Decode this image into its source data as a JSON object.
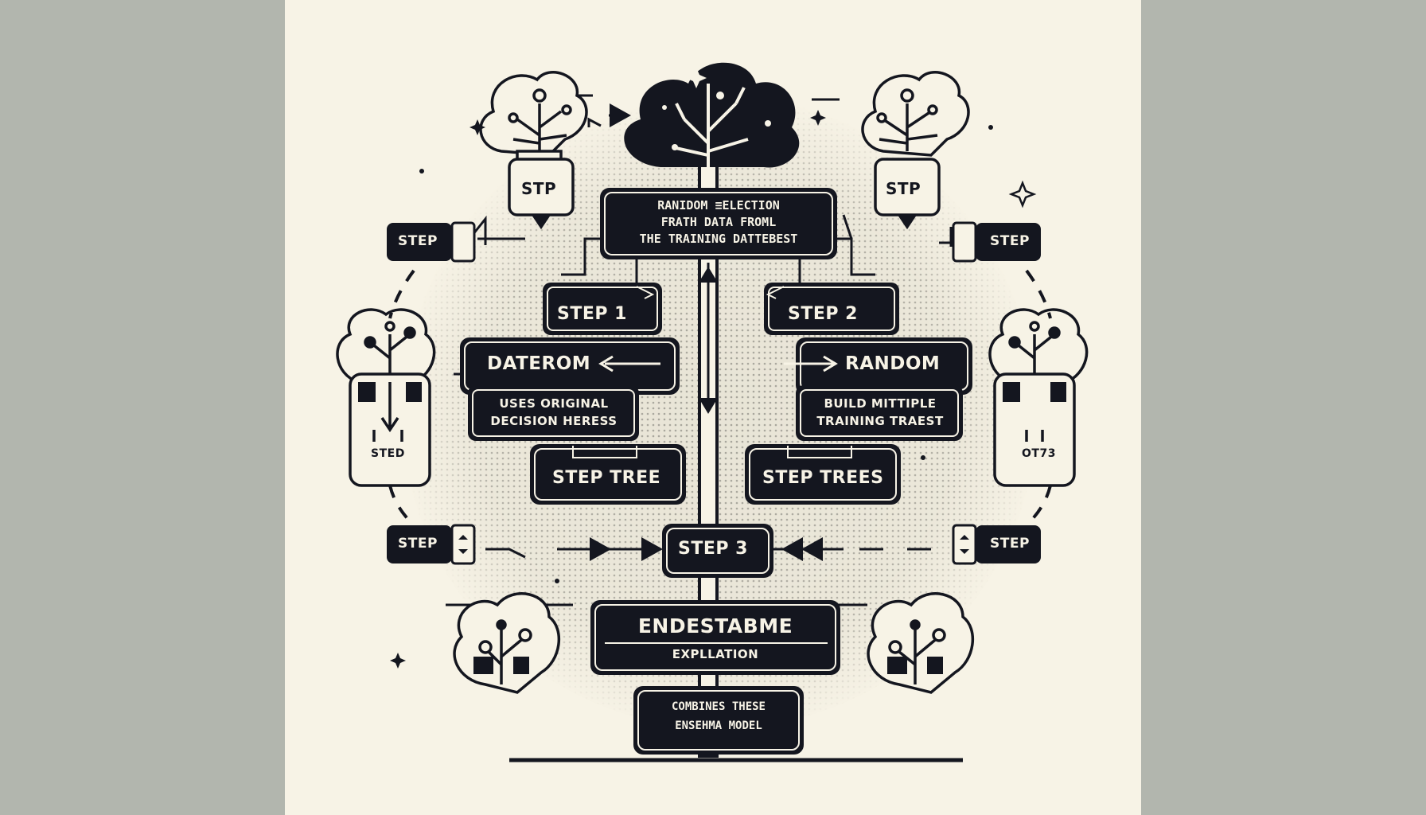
{
  "central": {
    "title_lines": [
      "RANIDOM ≡ELECTION",
      "FRATH DATA FROML",
      "THE TRAINING DATTEBEST"
    ],
    "step3": "STEP 3",
    "ensemble_title": "ENDESTABME",
    "ensemble_sub": "EXPLLATION",
    "combine_lines": [
      "COMBINES THESE",
      "ENSEHMA MODEL"
    ]
  },
  "left": {
    "step_label": "STEP 1",
    "main_label": "DATEROM",
    "desc_lines": [
      "USES ORIGINAL",
      "DECISION HERESS"
    ],
    "tree_label": "STEP TREE",
    "top_tree_label": "STP",
    "side_step_top": "STEP",
    "side_step_bottom": "STEP",
    "mid_tree_label": "STED"
  },
  "right": {
    "step_label": "STEP 2",
    "main_label": "RANDOM",
    "desc_lines": [
      "BUILD MITTIPLE",
      "TRAINING TRAEST"
    ],
    "tree_label": "STEP TREES",
    "top_tree_label": "STP",
    "side_step_top": "STEP",
    "side_step_bottom": "STEP",
    "mid_tree_label": "OT73"
  },
  "colors": {
    "ink": "#14161f",
    "paper": "#f7f3e6",
    "backdrop": "#b2b6ae",
    "dots": "#b9b7ae"
  }
}
